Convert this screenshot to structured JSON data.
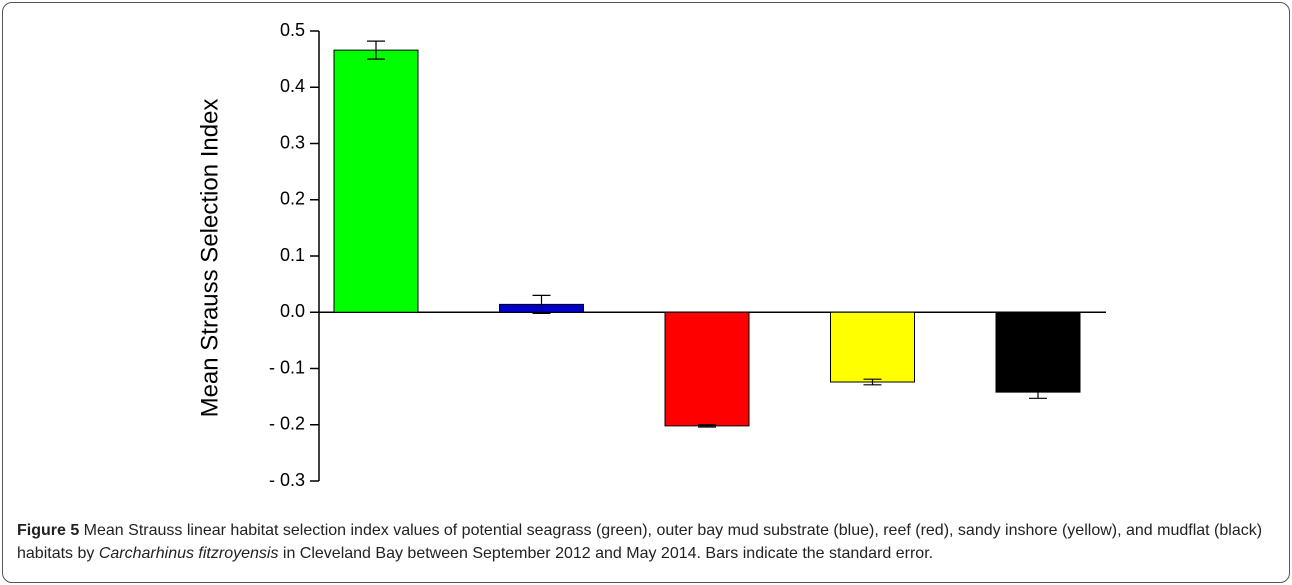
{
  "chart_data": {
    "type": "bar",
    "y_label": "Mean Strauss Selection Index",
    "categories": [
      null,
      null,
      null,
      null,
      null
    ],
    "values": [
      0.466,
      0.014,
      -0.202,
      -0.124,
      -0.142
    ],
    "errors": [
      0.016,
      0.016,
      0.002,
      0.005,
      0.011
    ],
    "colors": [
      "#00ff00",
      "#0000cc",
      "#ff0000",
      "#ffff00",
      "#000000"
    ],
    "ylim": [
      -0.3,
      0.5
    ],
    "yticks": [
      0.5,
      0.4,
      0.3,
      0.2,
      0.1,
      {
        "value": 0,
        "label": "0.0"
      },
      {
        "value": -0.1,
        "label": "- 0.1"
      },
      {
        "value": -0.2,
        "label": "- 0.2"
      },
      {
        "value": -0.3,
        "label": "- 0.3"
      }
    ],
    "grid": false
  },
  "caption": {
    "label": "Figure 5",
    "text_before": " Mean Strauss linear habitat selection index values of potential seagrass (green), outer bay mud substrate (blue), reef (red), sandy inshore (yellow), and mudflat (black) habitats by ",
    "species": "Carcharhinus fitzroyensis",
    "text_after": " in Cleveland Bay between September 2012 and May 2014. Bars indicate the standard error."
  }
}
